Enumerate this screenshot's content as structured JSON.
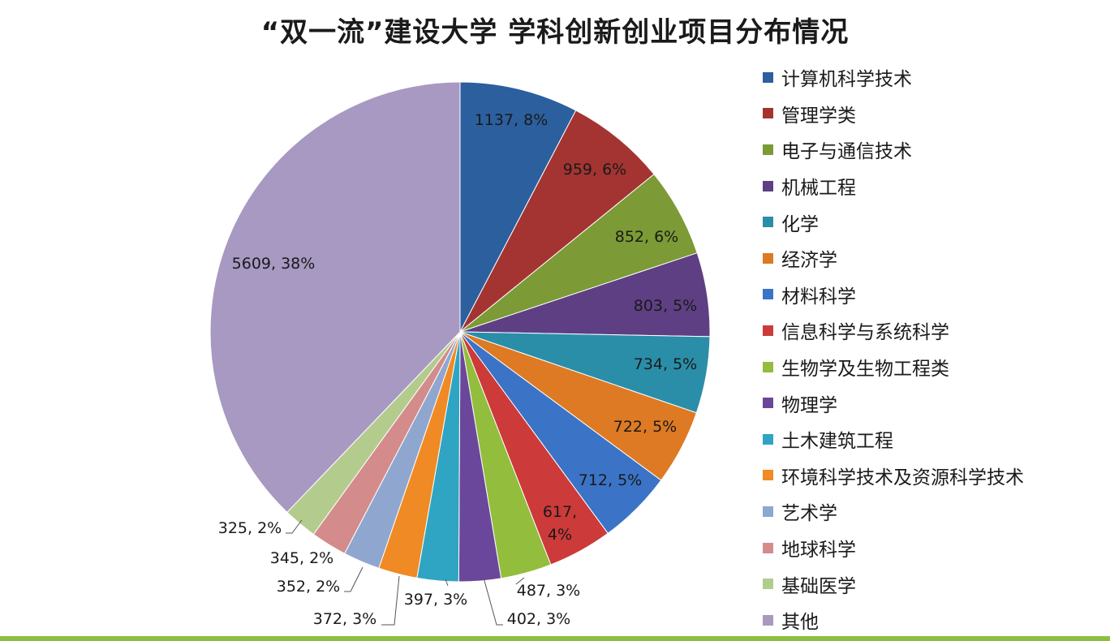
{
  "chart_data": {
    "type": "pie",
    "title": "“双一流”建设大学 学科创新创业项目分布情况",
    "slices": [
      {
        "name": "计算机科学技术",
        "value": 1137,
        "label": "1137, 8%",
        "color": "#2c5f9e"
      },
      {
        "name": "管理学类",
        "value": 959,
        "label": "959, 6%",
        "color": "#a33432"
      },
      {
        "name": "电子与通信技术",
        "value": 852,
        "label": "852, 6%",
        "color": "#7c9a35"
      },
      {
        "name": "机械工程",
        "value": 803,
        "label": "803, 5%",
        "color": "#5e3f84"
      },
      {
        "name": "化学",
        "value": 734,
        "label": "734, 5%",
        "color": "#2a8ea9"
      },
      {
        "name": "经济学",
        "value": 722,
        "label": "722, 5%",
        "color": "#dd7a23"
      },
      {
        "name": "材料科学",
        "value": 712,
        "label": "712, 5%",
        "color": "#3b73c6"
      },
      {
        "name": "信息科学与系统科学",
        "value": 617,
        "label": "617, 4%",
        "color": "#cc3a3a"
      },
      {
        "name": "生物学及生物工程类",
        "value": 487,
        "label": "487, 3%",
        "color": "#93bd3c"
      },
      {
        "name": "物理学",
        "value": 402,
        "label": "402, 3%",
        "color": "#6a479a"
      },
      {
        "name": "土木建筑工程",
        "value": 397,
        "label": "397, 3%",
        "color": "#2fa5c3"
      },
      {
        "name": "环境科学技术及资源科学技术",
        "value": 372,
        "label": "372, 3%",
        "color": "#f08a24"
      },
      {
        "name": "艺术学",
        "value": 352,
        "label": "352, 2%",
        "color": "#8fa7cf"
      },
      {
        "name": "地球科学",
        "value": 345,
        "label": "345, 2%",
        "color": "#d38c8b"
      },
      {
        "name": "基础医学",
        "value": 325,
        "label": "325, 2%",
        "color": "#b3cc8e"
      },
      {
        "name": "其他",
        "value": 5609,
        "label": "5609, 38%",
        "color": "#a799c2"
      }
    ],
    "legend_position": "right"
  }
}
